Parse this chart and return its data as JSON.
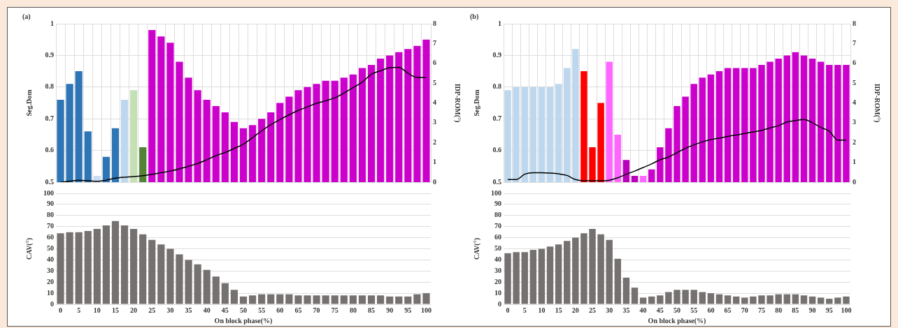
{
  "chart_data": [
    {
      "type": "bar",
      "title": "(a)",
      "ylabel": "Seg.Dom",
      "y2label": "IDP-ROM(°)",
      "categories": [
        "0",
        null,
        "5",
        null,
        "10",
        null,
        "15",
        null,
        "20",
        null,
        "25",
        null,
        "30",
        null,
        "35",
        null,
        "40",
        null,
        "45",
        null,
        "50",
        null,
        "55",
        null,
        "60",
        null,
        "65",
        null,
        "70",
        null,
        "75",
        null,
        "80",
        null,
        "85",
        null,
        "90",
        null,
        "95",
        null,
        "100"
      ],
      "ylim": [
        0.5,
        1
      ],
      "yticks": [
        0.5,
        0.6,
        0.7,
        0.8,
        0.9,
        1
      ],
      "y2lim": [
        0,
        8
      ],
      "y2ticks": [
        0,
        1,
        2,
        3,
        4,
        5,
        6,
        7,
        8
      ],
      "grid": true,
      "tick_labels": "y",
      "series": [
        {
          "type": "bar",
          "colors": [
            "#2e75b6",
            "#2e75b6",
            "#2e75b6",
            "#2e75b6",
            "#c9dcf0",
            "#2e75b6",
            "#2e75b6",
            "#bdd7ee",
            "#c5e0b4",
            "#548235",
            "#cc00cc",
            "#cc00cc",
            "#cc00cc",
            "#cc00cc",
            "#cc00cc",
            "#cc00cc",
            "#cc00cc",
            "#cc00cc",
            "#cc00cc",
            "#cc00cc",
            "#cc00cc",
            "#cc00cc",
            "#cc00cc",
            "#cc00cc",
            "#cc00cc",
            "#cc00cc",
            "#cc00cc",
            "#cc00cc",
            "#cc00cc",
            "#cc00cc",
            "#cc00cc",
            "#cc00cc",
            "#cc00cc",
            "#cc00cc",
            "#cc00cc",
            "#cc00cc",
            "#cc00cc",
            "#cc00cc",
            "#cc00cc",
            "#cc00cc",
            "#cc00cc"
          ],
          "values": [
            0.76,
            0.81,
            0.85,
            0.66,
            0.52,
            0.58,
            0.67,
            0.76,
            0.79,
            0.61,
            0.98,
            0.96,
            0.94,
            0.88,
            0.83,
            0.79,
            0.76,
            0.74,
            0.72,
            0.69,
            0.67,
            0.68,
            0.7,
            0.72,
            0.75,
            0.77,
            0.79,
            0.8,
            0.81,
            0.82,
            0.82,
            0.83,
            0.84,
            0.86,
            0.87,
            0.89,
            0.9,
            0.91,
            0.92,
            0.93,
            0.95
          ]
        },
        {
          "type": "line",
          "axis": "y2",
          "color": "#000000",
          "marker": "none",
          "line_style": "solid",
          "values": [
            0,
            0.04,
            0.1,
            0.07,
            0.04,
            0.1,
            0.2,
            0.25,
            0.28,
            0.33,
            0.4,
            0.48,
            0.56,
            0.67,
            0.8,
            0.94,
            1.13,
            1.34,
            1.5,
            1.7,
            1.92,
            2.25,
            2.59,
            2.9,
            3.16,
            3.4,
            3.62,
            3.8,
            3.98,
            4.11,
            4.26,
            4.5,
            4.77,
            5.05,
            5.45,
            5.62,
            5.78,
            5.8,
            5.5,
            5.29,
            5.29
          ]
        }
      ]
    },
    {
      "type": "bar",
      "title": "(b)",
      "ylabel": "Seg.Dom",
      "y2label": "IDP-ROM(°)",
      "categories": [
        "0",
        null,
        "5",
        null,
        "10",
        null,
        "15",
        null,
        "20",
        null,
        "25",
        null,
        "30",
        null,
        "35",
        null,
        "40",
        null,
        "45",
        null,
        "50",
        null,
        "55",
        null,
        "60",
        null,
        "65",
        null,
        "70",
        null,
        "75",
        null,
        "80",
        null,
        "85",
        null,
        "90",
        null,
        "95",
        null,
        "100"
      ],
      "ylim": [
        0.5,
        1
      ],
      "yticks": [
        0.5,
        0.6,
        0.7,
        0.8,
        0.9,
        1
      ],
      "y2lim": [
        0,
        8
      ],
      "y2ticks": [
        0,
        1,
        2,
        3,
        4,
        5,
        6,
        7,
        8
      ],
      "grid": true,
      "tick_labels": "y",
      "series": [
        {
          "type": "bar",
          "colors": [
            "#bdd7ee",
            "#bdd7ee",
            "#bdd7ee",
            "#bdd7ee",
            "#bdd7ee",
            "#bdd7ee",
            "#bdd7ee",
            "#bdd7ee",
            "#bdd7ee",
            "#ff0000",
            "#ff0000",
            "#ff0000",
            "#ff66ff",
            "#ff66ff",
            "#bb00bb",
            "#bb00bb",
            "#ff66ff",
            "#cc00cc",
            "#cc00cc",
            "#cc00cc",
            "#cc00cc",
            "#cc00cc",
            "#cc00cc",
            "#cc00cc",
            "#cc00cc",
            "#cc00cc",
            "#cc00cc",
            "#cc00cc",
            "#cc00cc",
            "#cc00cc",
            "#cc00cc",
            "#cc00cc",
            "#cc00cc",
            "#cc00cc",
            "#cc00cc",
            "#cc00cc",
            "#cc00cc",
            "#cc00cc",
            "#cc00cc",
            "#cc00cc",
            "#cc00cc"
          ],
          "values": [
            0.79,
            0.8,
            0.8,
            0.8,
            0.8,
            0.8,
            0.81,
            0.86,
            0.92,
            0.85,
            0.61,
            0.75,
            0.88,
            0.65,
            0.57,
            0.52,
            0.52,
            0.54,
            0.61,
            0.67,
            0.74,
            0.77,
            0.81,
            0.83,
            0.84,
            0.85,
            0.86,
            0.86,
            0.86,
            0.86,
            0.87,
            0.88,
            0.89,
            0.9,
            0.91,
            0.9,
            0.89,
            0.88,
            0.87,
            0.87,
            0.87
          ]
        },
        {
          "type": "line",
          "axis": "y2",
          "color": "#000000",
          "marker": "none",
          "line_style": "solid",
          "values": [
            0.13,
            0.13,
            0.4,
            0.48,
            0.48,
            0.46,
            0.42,
            0.34,
            0.13,
            0.07,
            0.07,
            0.07,
            0.1,
            0.22,
            0.4,
            0.56,
            0.74,
            0.92,
            1.13,
            1.27,
            1.49,
            1.71,
            1.88,
            2.03,
            2.15,
            2.22,
            2.31,
            2.38,
            2.46,
            2.54,
            2.61,
            2.74,
            2.85,
            3.04,
            3.11,
            3.16,
            3,
            2.76,
            2.58,
            2.12,
            2.12
          ]
        }
      ]
    },
    {
      "type": "bar",
      "ylabel": "CAV(°)",
      "xlabel": "On block phase(%)",
      "categories": [
        "0",
        null,
        "5",
        null,
        "10",
        null,
        "15",
        null,
        "20",
        null,
        "25",
        null,
        "30",
        null,
        "35",
        null,
        "40",
        null,
        "45",
        null,
        "50",
        null,
        "55",
        null,
        "60",
        null,
        "65",
        null,
        "70",
        null,
        "75",
        null,
        "80",
        null,
        "85",
        null,
        "90",
        null,
        "95",
        null,
        "100"
      ],
      "ylim": [
        0,
        100
      ],
      "yticks": [
        0,
        10,
        20,
        30,
        40,
        50,
        60,
        70,
        80,
        90,
        100
      ],
      "grid": "y",
      "color": "#767171",
      "values": [
        64,
        65,
        65,
        66,
        68,
        71,
        75,
        71,
        68,
        63,
        58,
        54,
        50,
        45,
        40,
        36,
        31,
        25,
        19,
        13,
        7,
        8,
        9,
        9,
        9,
        9,
        8,
        8,
        8,
        8,
        8,
        8,
        8,
        8,
        8,
        8,
        7,
        7,
        7,
        9,
        10
      ]
    },
    {
      "type": "bar",
      "ylabel": "CAV(°)",
      "xlabel": "On block phase(%)",
      "categories": [
        "0",
        null,
        "5",
        null,
        "10",
        null,
        "15",
        null,
        "20",
        null,
        "25",
        null,
        "30",
        null,
        "35",
        null,
        "40",
        null,
        "45",
        null,
        "50",
        null,
        "55",
        null,
        "60",
        null,
        "65",
        null,
        "70",
        null,
        "75",
        null,
        "80",
        null,
        "85",
        null,
        "90",
        null,
        "95",
        null,
        "100"
      ],
      "ylim": [
        0,
        100
      ],
      "yticks": [
        0,
        10,
        20,
        30,
        40,
        50,
        60,
        70,
        80,
        90,
        100
      ],
      "grid": "y",
      "color": "#767171",
      "values": [
        46,
        47,
        47,
        49,
        50,
        52,
        54,
        57,
        60,
        64,
        68,
        63,
        58,
        41,
        24,
        15,
        6,
        7,
        8,
        11,
        13,
        13,
        13,
        11,
        10,
        9,
        8,
        7,
        6,
        7,
        8,
        8,
        9,
        9,
        9,
        8,
        7,
        6,
        5,
        6,
        7
      ]
    }
  ]
}
